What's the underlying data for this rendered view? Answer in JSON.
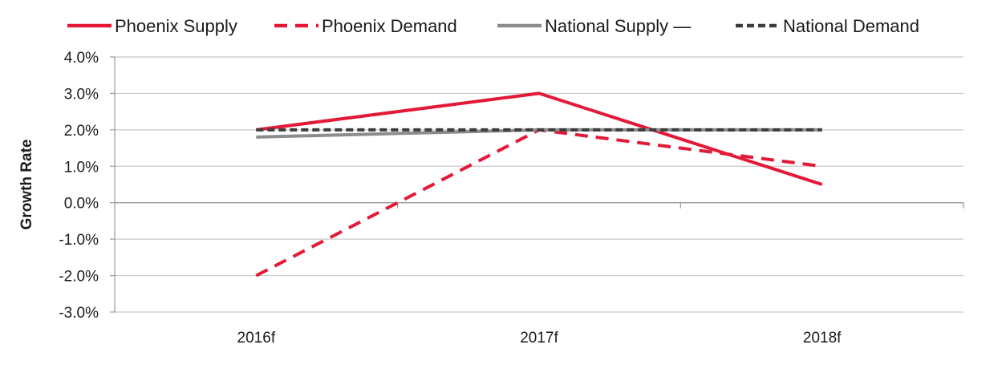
{
  "chart_data": {
    "type": "line",
    "title": "",
    "xlabel": "",
    "ylabel": "Growth Rate",
    "categories": [
      "2016f",
      "2017f",
      "2018f"
    ],
    "y_ticks": [
      "4.0%",
      "3.0%",
      "2.0%",
      "1.0%",
      "0.0%",
      "-1.0%",
      "-2.0%",
      "-3.0%"
    ],
    "ylim": [
      -3.0,
      4.0
    ],
    "grid": "horizontal",
    "legend_position": "top",
    "series": [
      {
        "name": "Phoenix Supply",
        "values": [
          2.0,
          3.0,
          0.5
        ],
        "color": "#e31937",
        "style": "solid"
      },
      {
        "name": "Phoenix Demand",
        "values": [
          -2.0,
          2.0,
          1.0
        ],
        "color": "#e31937",
        "style": "dashed"
      },
      {
        "name": "National Supply —",
        "values": [
          1.8,
          2.0,
          2.0
        ],
        "color": "#8c8c8c",
        "style": "solid"
      },
      {
        "name": "National Demand",
        "values": [
          2.0,
          2.0,
          2.0
        ],
        "color": "#3d3d3d",
        "style": "dashed"
      }
    ]
  }
}
